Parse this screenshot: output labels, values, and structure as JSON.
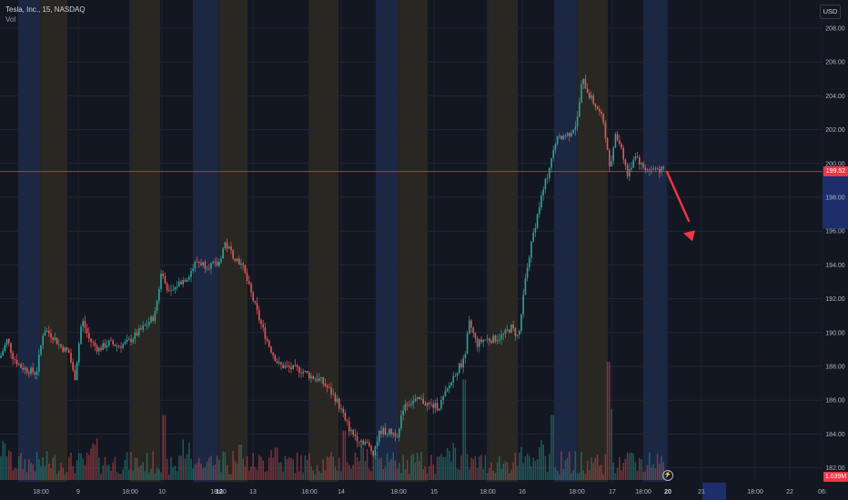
{
  "header": {
    "symbol_label": "Tesla, Inc., 15, NASDAQ",
    "volume_label": "Vol",
    "currency": "USD"
  },
  "price_tags": {
    "last_price": "199.52",
    "volume_value": "1.039M"
  },
  "icons": {
    "event_marker": "lightning-bolt-icon"
  },
  "colors": {
    "background": "#131722",
    "up": "#26a69a",
    "down": "#ef5350",
    "session_premarket": "#1e2a4a",
    "session_afterhours": "#2e2a22",
    "price_line": "#f23645",
    "arrow": "#f23645",
    "axis_text": "#b2b5be"
  },
  "chart_data": {
    "type": "candlestick",
    "title": "Tesla, Inc., 15, NASDAQ",
    "ylabel": "USD",
    "ylim": [
      181.5,
      208.9
    ],
    "y_ticks": [
      "208.00",
      "206.00",
      "204.00",
      "202.00",
      "200.00",
      "198.00",
      "196.00",
      "194.00",
      "192.00",
      "190.00",
      "188.00",
      "186.00",
      "184.00",
      "182.00"
    ],
    "x_ticks": [
      "18:00",
      "9",
      "18:00",
      "10",
      "18:00",
      "12",
      "13",
      "18:00",
      "14",
      "18:00",
      "15",
      "18:00",
      "16",
      "18:00",
      "17",
      "18:00",
      "20",
      "21",
      "18:00",
      "22",
      "06:"
    ],
    "last_price": 199.52,
    "grid": true,
    "price_path": [
      [
        0,
        188.5
      ],
      [
        8,
        189.6
      ],
      [
        14,
        188.6
      ],
      [
        22,
        188.0
      ],
      [
        30,
        187.8
      ],
      [
        40,
        187.6
      ],
      [
        48,
        190.2
      ],
      [
        58,
        189.8
      ],
      [
        66,
        189.2
      ],
      [
        76,
        188.8
      ],
      [
        82,
        187.2
      ],
      [
        90,
        190.8
      ],
      [
        98,
        189.6
      ],
      [
        108,
        189.0
      ],
      [
        120,
        189.4
      ],
      [
        130,
        189.2
      ],
      [
        140,
        189.4
      ],
      [
        150,
        189.9
      ],
      [
        160,
        190.4
      ],
      [
        170,
        191.0
      ],
      [
        178,
        193.8
      ],
      [
        186,
        192.2
      ],
      [
        196,
        192.9
      ],
      [
        206,
        193.3
      ],
      [
        216,
        194.2
      ],
      [
        226,
        194.0
      ],
      [
        240,
        194.0
      ],
      [
        247,
        195.3
      ],
      [
        256,
        194.6
      ],
      [
        266,
        194.0
      ],
      [
        276,
        192.3
      ],
      [
        286,
        190.6
      ],
      [
        296,
        189.2
      ],
      [
        306,
        188.1
      ],
      [
        318,
        187.9
      ],
      [
        330,
        187.8
      ],
      [
        342,
        187.4
      ],
      [
        352,
        187.2
      ],
      [
        362,
        186.6
      ],
      [
        370,
        186.0
      ],
      [
        378,
        185.0
      ],
      [
        386,
        184.1
      ],
      [
        394,
        183.7
      ],
      [
        402,
        183.5
      ],
      [
        410,
        182.9
      ],
      [
        418,
        184.2
      ],
      [
        428,
        184.1
      ],
      [
        438,
        184.0
      ],
      [
        444,
        185.8
      ],
      [
        452,
        185.9
      ],
      [
        462,
        186.0
      ],
      [
        472,
        185.7
      ],
      [
        482,
        185.6
      ],
      [
        490,
        186.4
      ],
      [
        500,
        187.6
      ],
      [
        510,
        188.4
      ],
      [
        516,
        190.6
      ],
      [
        524,
        189.3
      ],
      [
        532,
        189.6
      ],
      [
        542,
        189.6
      ],
      [
        552,
        189.8
      ],
      [
        562,
        190.3
      ],
      [
        570,
        189.7
      ],
      [
        578,
        193.4
      ],
      [
        586,
        195.8
      ],
      [
        594,
        197.8
      ],
      [
        602,
        199.4
      ],
      [
        610,
        201.3
      ],
      [
        618,
        201.6
      ],
      [
        626,
        201.8
      ],
      [
        634,
        202.4
      ],
      [
        640,
        205.0
      ],
      [
        648,
        204.0
      ],
      [
        656,
        203.3
      ],
      [
        664,
        202.4
      ],
      [
        670,
        199.5
      ],
      [
        676,
        201.6
      ],
      [
        682,
        201.2
      ],
      [
        690,
        199.2
      ],
      [
        698,
        200.6
      ],
      [
        706,
        199.8
      ],
      [
        714,
        199.6
      ],
      [
        722,
        199.7
      ],
      [
        730,
        199.5
      ]
    ],
    "volume_spikes": [
      [
        180,
        0.55
      ],
      [
        263,
        0.3
      ],
      [
        379,
        0.42
      ],
      [
        510,
        0.85
      ],
      [
        573,
        0.28
      ],
      [
        608,
        0.55
      ],
      [
        668,
        1.0
      ],
      [
        672,
        0.6
      ]
    ]
  }
}
